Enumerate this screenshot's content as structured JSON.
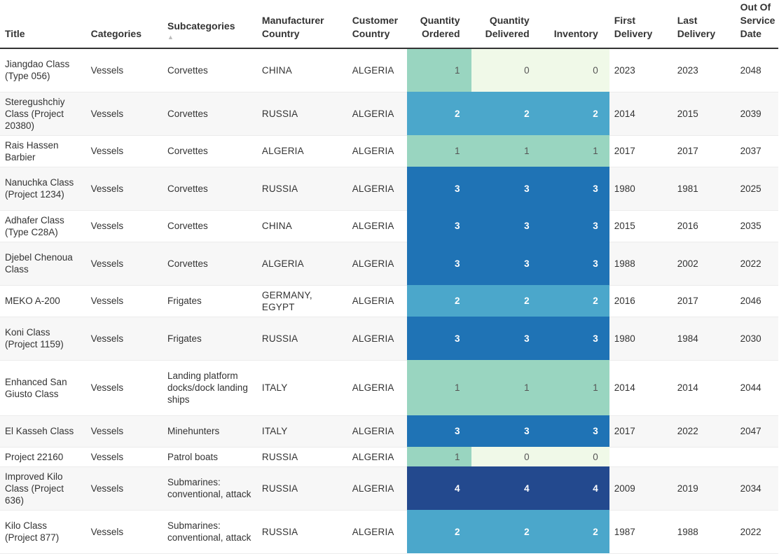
{
  "table": {
    "columns": [
      {
        "key": "title",
        "label": "Title"
      },
      {
        "key": "categories",
        "label": "Categories"
      },
      {
        "key": "subcategories",
        "label": "Subcategories",
        "sorted": "ascending"
      },
      {
        "key": "manufacturer_country",
        "label": "Manufacturer Country"
      },
      {
        "key": "customer_country",
        "label": "Customer Country"
      },
      {
        "key": "quantity_ordered",
        "label": "Quantity Ordered"
      },
      {
        "key": "quantity_delivered",
        "label": "Quantity Delivered"
      },
      {
        "key": "inventory",
        "label": "Inventory"
      },
      {
        "key": "first_delivery",
        "label": "First Delivery"
      },
      {
        "key": "last_delivery",
        "label": "Last Delivery"
      },
      {
        "key": "out_of_service_date",
        "label": "Out Of Service Date"
      }
    ],
    "sort_indicator": "▲",
    "heat_colors": {
      "0": "#f0f9e8",
      "1": "#99d5c0",
      "2": "#4ba7cb",
      "3": "#1f73b5",
      "4": "#23498e"
    },
    "rows": [
      {
        "title": "Jiangdao Class (Type 056)",
        "categories": "Vessels",
        "subcategories": "Corvettes",
        "manufacturer_country": "CHINA",
        "customer_country": "ALGERIA",
        "quantity_ordered": "1",
        "quantity_delivered": "0",
        "inventory": "0",
        "first_delivery": "2023",
        "last_delivery": "2023",
        "out_of_service_date": "2048"
      },
      {
        "title": "Steregushchiy Class (Project 20380)",
        "categories": "Vessels",
        "subcategories": "Corvettes",
        "manufacturer_country": "RUSSIA",
        "customer_country": "ALGERIA",
        "quantity_ordered": "2",
        "quantity_delivered": "2",
        "inventory": "2",
        "first_delivery": "2014",
        "last_delivery": "2015",
        "out_of_service_date": "2039"
      },
      {
        "title": "Rais Hassen Barbier",
        "categories": "Vessels",
        "subcategories": "Corvettes",
        "manufacturer_country": "ALGERIA",
        "customer_country": "ALGERIA",
        "quantity_ordered": "1",
        "quantity_delivered": "1",
        "inventory": "1",
        "first_delivery": "2017",
        "last_delivery": "2017",
        "out_of_service_date": "2037"
      },
      {
        "title": "Nanuchka Class (Project 1234)",
        "categories": "Vessels",
        "subcategories": "Corvettes",
        "manufacturer_country": "RUSSIA",
        "customer_country": "ALGERIA",
        "quantity_ordered": "3",
        "quantity_delivered": "3",
        "inventory": "3",
        "first_delivery": "1980",
        "last_delivery": "1981",
        "out_of_service_date": "2025"
      },
      {
        "title": "Adhafer Class (Type C28A)",
        "categories": "Vessels",
        "subcategories": "Corvettes",
        "manufacturer_country": "CHINA",
        "customer_country": "ALGERIA",
        "quantity_ordered": "3",
        "quantity_delivered": "3",
        "inventory": "3",
        "first_delivery": "2015",
        "last_delivery": "2016",
        "out_of_service_date": "2035"
      },
      {
        "title": "Djebel Chenoua Class",
        "categories": "Vessels",
        "subcategories": "Corvettes",
        "manufacturer_country": "ALGERIA",
        "customer_country": "ALGERIA",
        "quantity_ordered": "3",
        "quantity_delivered": "3",
        "inventory": "3",
        "first_delivery": "1988",
        "last_delivery": "2002",
        "out_of_service_date": "2022"
      },
      {
        "title": "MEKO A-200",
        "categories": "Vessels",
        "subcategories": "Frigates",
        "manufacturer_country": "GERMANY, EGYPT",
        "customer_country": "ALGERIA",
        "quantity_ordered": "2",
        "quantity_delivered": "2",
        "inventory": "2",
        "first_delivery": "2016",
        "last_delivery": "2017",
        "out_of_service_date": "2046"
      },
      {
        "title": "Koni Class (Project 1159)",
        "categories": "Vessels",
        "subcategories": "Frigates",
        "manufacturer_country": "RUSSIA",
        "customer_country": "ALGERIA",
        "quantity_ordered": "3",
        "quantity_delivered": "3",
        "inventory": "3",
        "first_delivery": "1980",
        "last_delivery": "1984",
        "out_of_service_date": "2030"
      },
      {
        "title": "Enhanced San Giusto Class",
        "categories": "Vessels",
        "subcategories": "Landing platform docks/dock landing ships",
        "manufacturer_country": "ITALY",
        "customer_country": "ALGERIA",
        "quantity_ordered": "1",
        "quantity_delivered": "1",
        "inventory": "1",
        "first_delivery": "2014",
        "last_delivery": "2014",
        "out_of_service_date": "2044"
      },
      {
        "title": "El Kasseh Class",
        "categories": "Vessels",
        "subcategories": "Minehunters",
        "manufacturer_country": "ITALY",
        "customer_country": "ALGERIA",
        "quantity_ordered": "3",
        "quantity_delivered": "3",
        "inventory": "3",
        "first_delivery": "2017",
        "last_delivery": "2022",
        "out_of_service_date": "2047"
      },
      {
        "title": "Project 22160",
        "categories": "Vessels",
        "subcategories": "Patrol boats",
        "manufacturer_country": "RUSSIA",
        "customer_country": "ALGERIA",
        "quantity_ordered": "1",
        "quantity_delivered": "0",
        "inventory": "0",
        "first_delivery": "",
        "last_delivery": "",
        "out_of_service_date": ""
      },
      {
        "title": "Improved Kilo Class (Project 636)",
        "categories": "Vessels",
        "subcategories": "Submarines: conventional, attack",
        "manufacturer_country": "RUSSIA",
        "customer_country": "ALGERIA",
        "quantity_ordered": "4",
        "quantity_delivered": "4",
        "inventory": "4",
        "first_delivery": "2009",
        "last_delivery": "2019",
        "out_of_service_date": "2034"
      },
      {
        "title": "Kilo Class (Project 877)",
        "categories": "Vessels",
        "subcategories": "Submarines: conventional, attack",
        "manufacturer_country": "RUSSIA",
        "customer_country": "ALGERIA",
        "quantity_ordered": "2",
        "quantity_delivered": "2",
        "inventory": "2",
        "first_delivery": "1987",
        "last_delivery": "1988",
        "out_of_service_date": "2022"
      }
    ]
  }
}
